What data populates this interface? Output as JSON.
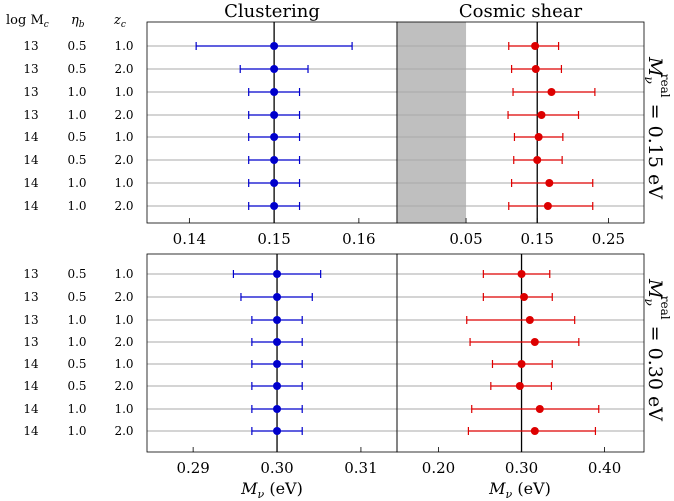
{
  "chart_data": [
    {
      "type": "errorbar-forest",
      "title": "Clustering",
      "panel": "top-left",
      "xlabel": "",
      "xlim": [
        0.135,
        0.1645
      ],
      "xticks": [
        0.14,
        0.15,
        0.16
      ],
      "tick_labels": [
        "0.14",
        "0.15",
        "0.16"
      ],
      "reference": 0.15,
      "color": "#0000cc",
      "points": [
        {
          "value": 0.15,
          "lo": 0.1408,
          "hi": 0.1592
        },
        {
          "value": 0.15,
          "lo": 0.146,
          "hi": 0.154
        },
        {
          "value": 0.15,
          "lo": 0.147,
          "hi": 0.153
        },
        {
          "value": 0.15,
          "lo": 0.147,
          "hi": 0.153
        },
        {
          "value": 0.15,
          "lo": 0.147,
          "hi": 0.153
        },
        {
          "value": 0.15,
          "lo": 0.147,
          "hi": 0.153
        },
        {
          "value": 0.15,
          "lo": 0.147,
          "hi": 0.153
        },
        {
          "value": 0.15,
          "lo": 0.147,
          "hi": 0.153
        }
      ]
    },
    {
      "type": "errorbar-forest",
      "title": "Cosmic shear",
      "panel": "top-right",
      "xlabel": "",
      "xlim": [
        -0.047,
        0.3
      ],
      "xticks": [
        0.05,
        0.15,
        0.25
      ],
      "tick_labels": [
        "0.05",
        "0.15",
        "0.25"
      ],
      "reference": 0.15,
      "shaded_region": [
        -0.047,
        0.05
      ],
      "color": "#dd0000",
      "points": [
        {
          "value": 0.147,
          "lo": 0.11,
          "hi": 0.18
        },
        {
          "value": 0.148,
          "lo": 0.114,
          "hi": 0.184
        },
        {
          "value": 0.17,
          "lo": 0.116,
          "hi": 0.231
        },
        {
          "value": 0.156,
          "lo": 0.109,
          "hi": 0.208
        },
        {
          "value": 0.152,
          "lo": 0.118,
          "hi": 0.186
        },
        {
          "value": 0.15,
          "lo": 0.117,
          "hi": 0.185
        },
        {
          "value": 0.167,
          "lo": 0.114,
          "hi": 0.228
        },
        {
          "value": 0.165,
          "lo": 0.11,
          "hi": 0.228
        }
      ]
    },
    {
      "type": "errorbar-forest",
      "title": "",
      "panel": "bottom-left",
      "xlabel": "M_ν (eV)",
      "xlim": [
        0.2845,
        0.3143
      ],
      "xticks": [
        0.29,
        0.3,
        0.31
      ],
      "tick_labels": [
        "0.29",
        "0.30",
        "0.31"
      ],
      "reference": 0.3,
      "color": "#0000cc",
      "points": [
        {
          "value": 0.3,
          "lo": 0.2948,
          "hi": 0.3052
        },
        {
          "value": 0.3,
          "lo": 0.2957,
          "hi": 0.3042
        },
        {
          "value": 0.3,
          "lo": 0.297,
          "hi": 0.303
        },
        {
          "value": 0.3,
          "lo": 0.297,
          "hi": 0.303
        },
        {
          "value": 0.3,
          "lo": 0.297,
          "hi": 0.303
        },
        {
          "value": 0.3,
          "lo": 0.297,
          "hi": 0.303
        },
        {
          "value": 0.3,
          "lo": 0.297,
          "hi": 0.303
        },
        {
          "value": 0.3,
          "lo": 0.297,
          "hi": 0.303
        }
      ]
    },
    {
      "type": "errorbar-forest",
      "title": "",
      "panel": "bottom-right",
      "xlabel": "M_ν (eV)",
      "xlim": [
        0.15,
        0.4475
      ],
      "xticks": [
        0.2,
        0.3,
        0.4
      ],
      "tick_labels": [
        "0.20",
        "0.30",
        "0.40"
      ],
      "reference": 0.3,
      "color": "#dd0000",
      "points": [
        {
          "value": 0.3,
          "lo": 0.254,
          "hi": 0.334
        },
        {
          "value": 0.303,
          "lo": 0.254,
          "hi": 0.337
        },
        {
          "value": 0.31,
          "lo": 0.234,
          "hi": 0.364
        },
        {
          "value": 0.316,
          "lo": 0.238,
          "hi": 0.369
        },
        {
          "value": 0.3,
          "lo": 0.265,
          "hi": 0.337
        },
        {
          "value": 0.298,
          "lo": 0.263,
          "hi": 0.336
        },
        {
          "value": 0.322,
          "lo": 0.24,
          "hi": 0.393
        },
        {
          "value": 0.316,
          "lo": 0.236,
          "hi": 0.389
        }
      ]
    }
  ],
  "row_headers": {
    "log_mc": "log M",
    "log_mc_sub": "c",
    "eta": "η",
    "eta_sub": "b",
    "zc": "z",
    "zc_sub": "c"
  },
  "rows": [
    {
      "log_mc": "13",
      "eta_b": "0.5",
      "z_c": "1.0"
    },
    {
      "log_mc": "13",
      "eta_b": "0.5",
      "z_c": "2.0"
    },
    {
      "log_mc": "13",
      "eta_b": "1.0",
      "z_c": "1.0"
    },
    {
      "log_mc": "13",
      "eta_b": "1.0",
      "z_c": "2.0"
    },
    {
      "log_mc": "14",
      "eta_b": "0.5",
      "z_c": "1.0"
    },
    {
      "log_mc": "14",
      "eta_b": "0.5",
      "z_c": "2.0"
    },
    {
      "log_mc": "14",
      "eta_b": "1.0",
      "z_c": "1.0"
    },
    {
      "log_mc": "14",
      "eta_b": "1.0",
      "z_c": "2.0"
    }
  ],
  "side_labels": {
    "top": {
      "base": "M",
      "sub": "ν",
      "sup": "real",
      "value": " = 0.15 eV"
    },
    "bottom": {
      "base": "M",
      "sub": "ν",
      "sup": "real",
      "value": " = 0.30 eV"
    }
  },
  "xlabel_text": {
    "base": "M",
    "sub": "ν",
    "unit": " (eV)"
  }
}
